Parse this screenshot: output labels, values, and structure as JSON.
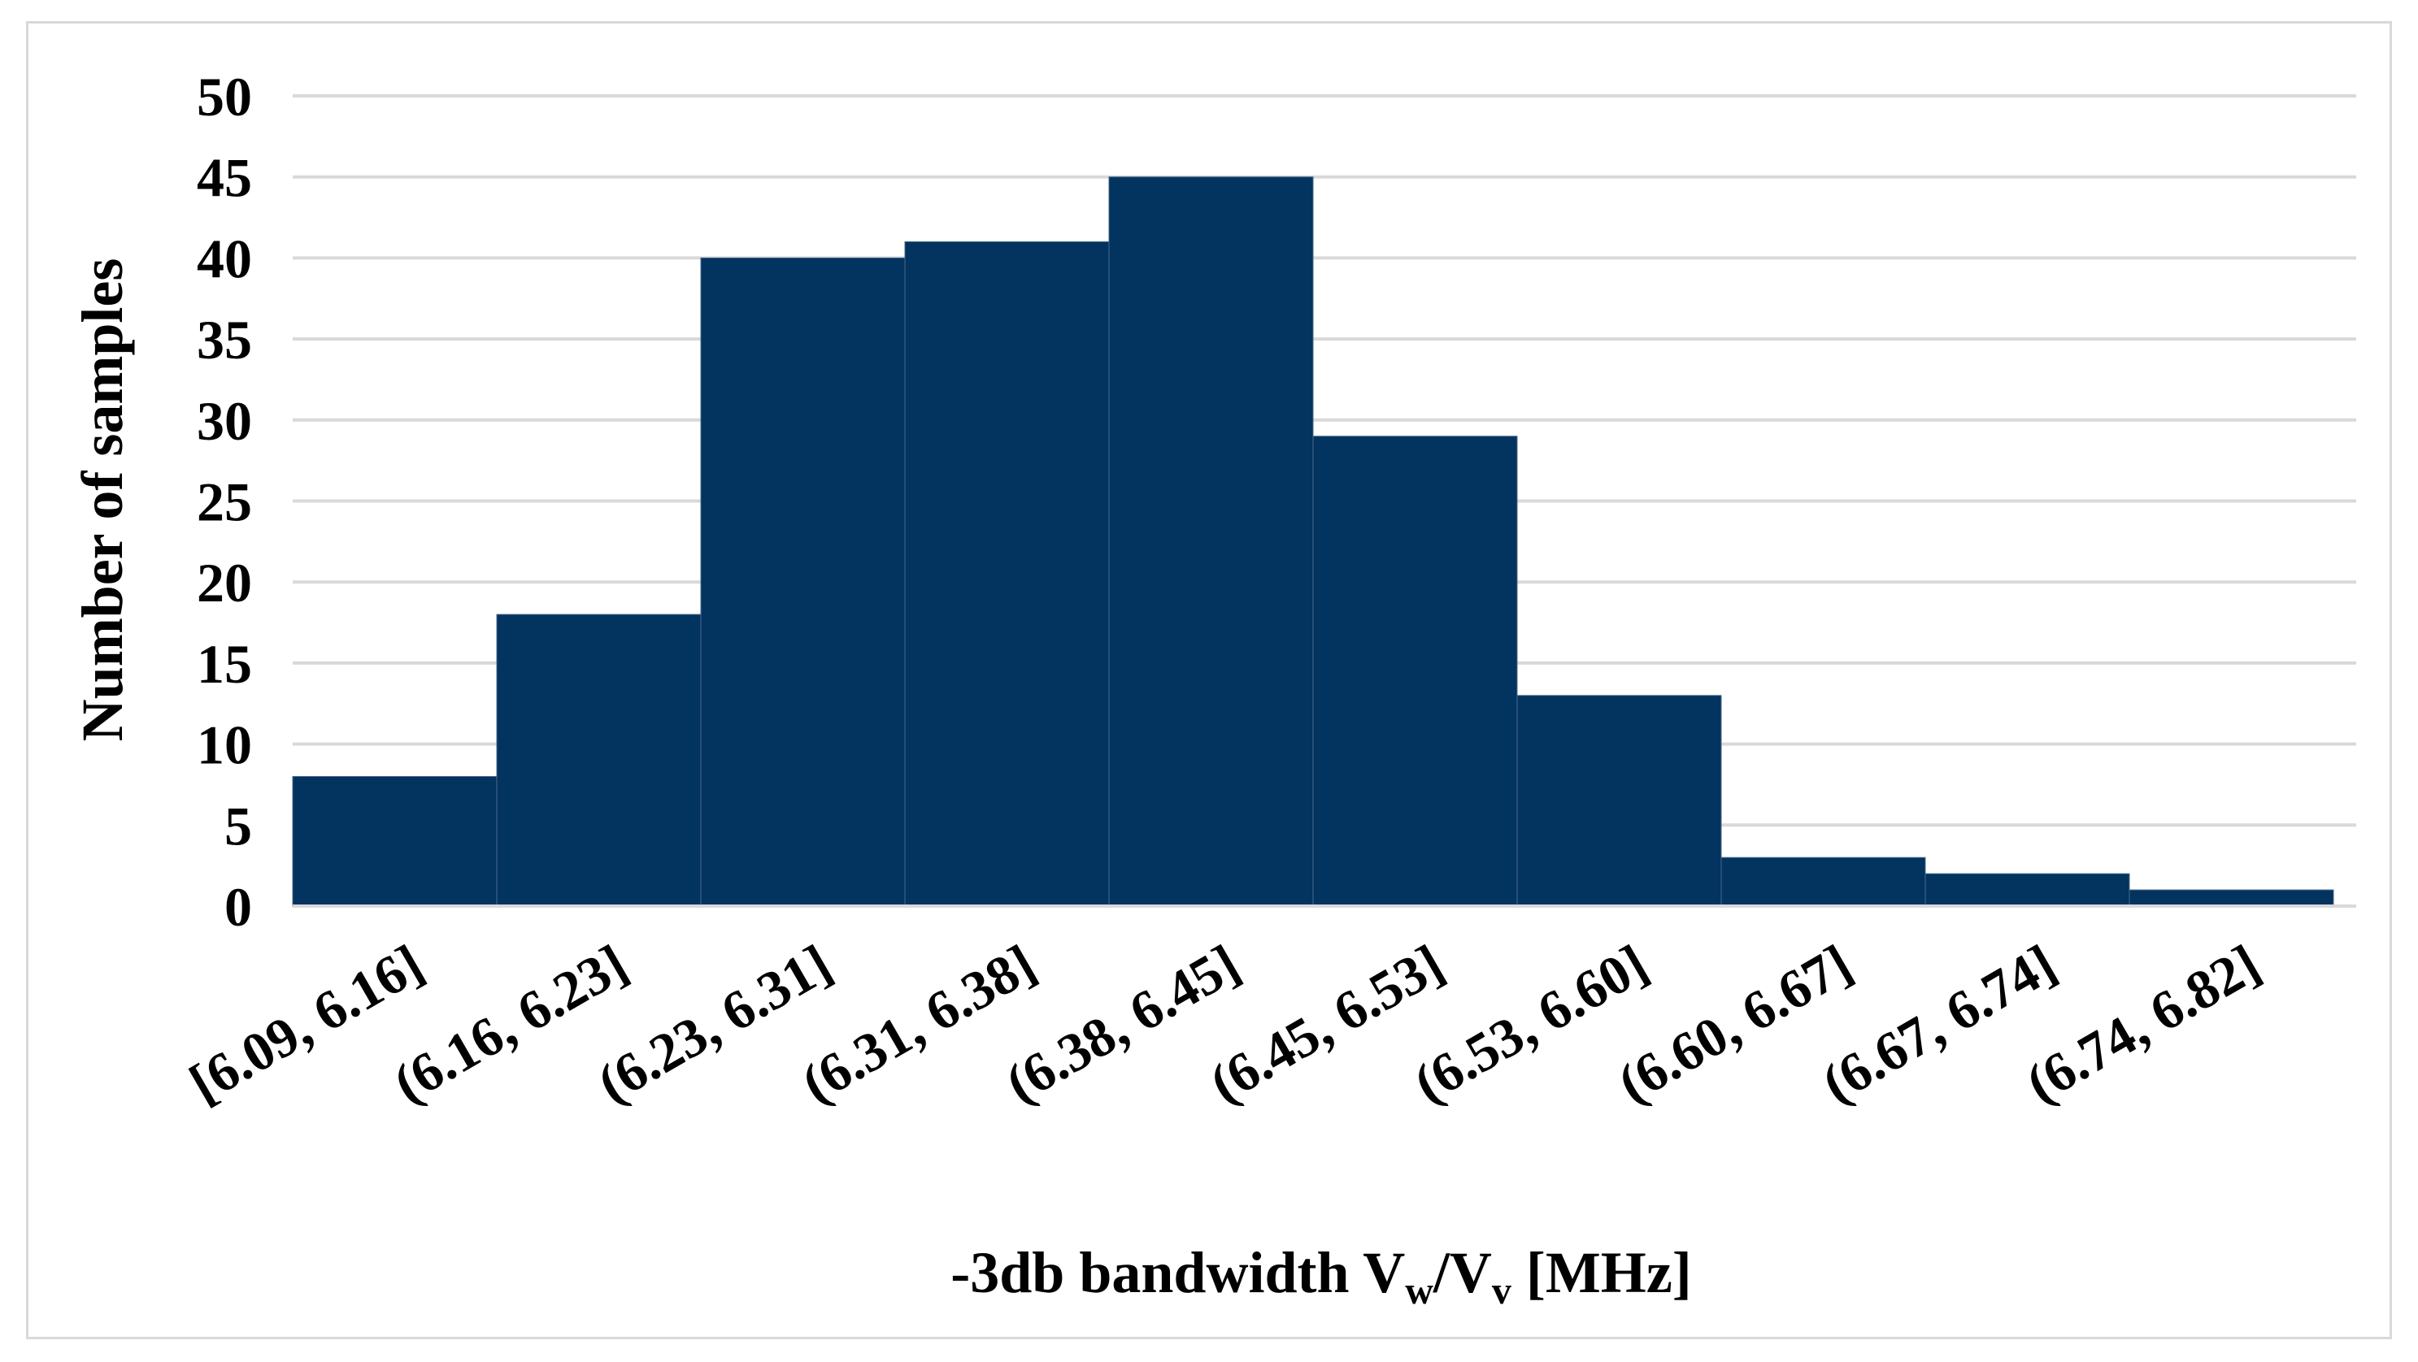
{
  "chart_data": {
    "type": "bar",
    "categories": [
      "[6.09, 6.16]",
      "(6.16, 6.23]",
      "(6.23, 6.31]",
      "(6.31, 6.38]",
      "(6.38, 6.45]",
      "(6.45, 6.53]",
      "(6.53, 6.60]",
      "(6.60, 6.67]",
      "(6.67, 6.74]",
      "(6.74, 6.82]"
    ],
    "values": [
      8,
      18,
      40,
      41,
      45,
      29,
      13,
      3,
      2,
      1
    ],
    "ylabel": "Number of samples",
    "xlabel": {
      "prefix": "-3db bandwidth V",
      "sub1": "w",
      "mid": "/V",
      "sub2": "v",
      "suffix": " [MHz]"
    },
    "ylim": [
      0,
      50
    ],
    "yticks": [
      "0",
      "5",
      "10",
      "15",
      "20",
      "25",
      "30",
      "35",
      "40",
      "45",
      "50"
    ],
    "grid": true,
    "bar_color": "#03335f",
    "grid_color": "#d9d9d9",
    "histogram": true
  }
}
